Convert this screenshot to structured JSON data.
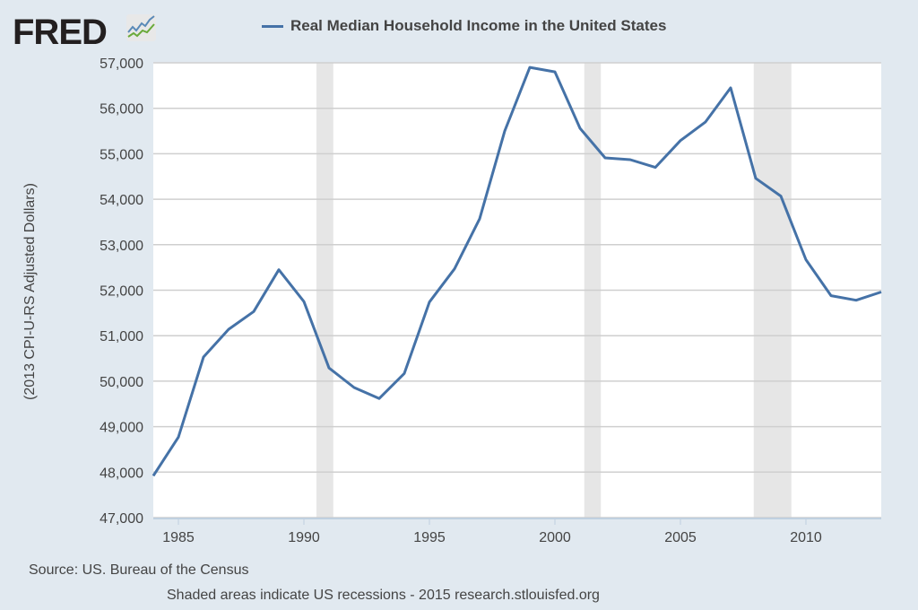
{
  "logo": {
    "text": "FRED"
  },
  "chart_data": {
    "type": "line",
    "title": "",
    "xlabel": "",
    "ylabel": "(2013 CPI-U-RS Adjusted Dollars)",
    "xlim": [
      1984,
      2013
    ],
    "ylim": [
      47000,
      57000
    ],
    "grid": true,
    "legend_placement": "top",
    "x_ticks": [
      1985,
      1990,
      1995,
      2000,
      2005,
      2010
    ],
    "y_ticks": [
      47000,
      48000,
      49000,
      50000,
      51000,
      52000,
      53000,
      54000,
      55000,
      56000,
      57000
    ],
    "y_tick_labels": [
      "47,000",
      "48,000",
      "49,000",
      "50,000",
      "51,000",
      "52,000",
      "53,000",
      "54,000",
      "55,000",
      "56,000",
      "57,000"
    ],
    "series": [
      {
        "name": "Real Median Household Income in the United States",
        "color": "#4572a7",
        "x": [
          1984,
          1985,
          1986,
          1987,
          1988,
          1989,
          1990,
          1991,
          1992,
          1993,
          1994,
          1995,
          1996,
          1997,
          1998,
          1999,
          2000,
          2001,
          2002,
          2003,
          2004,
          2005,
          2006,
          2007,
          2008,
          2009,
          2010,
          2011,
          2012,
          2013
        ],
        "y": [
          47920,
          48770,
          50530,
          51140,
          51530,
          52450,
          51750,
          50290,
          49860,
          49620,
          50170,
          51740,
          52470,
          53570,
          55500,
          56900,
          56800,
          55560,
          54910,
          54870,
          54700,
          55290,
          55700,
          56450,
          54460,
          54070,
          52670,
          51880,
          51780,
          51960
        ]
      }
    ],
    "recessions": [
      [
        1990.5,
        1991.17
      ],
      [
        2001.17,
        2001.83
      ],
      [
        2007.92,
        2009.42
      ]
    ],
    "recession_color": "#e6e6e6"
  },
  "footer": {
    "source": "Source: US. Bureau of the Census",
    "note": "Shaded areas indicate US recessions - 2015 research.stlouisfed.org"
  }
}
